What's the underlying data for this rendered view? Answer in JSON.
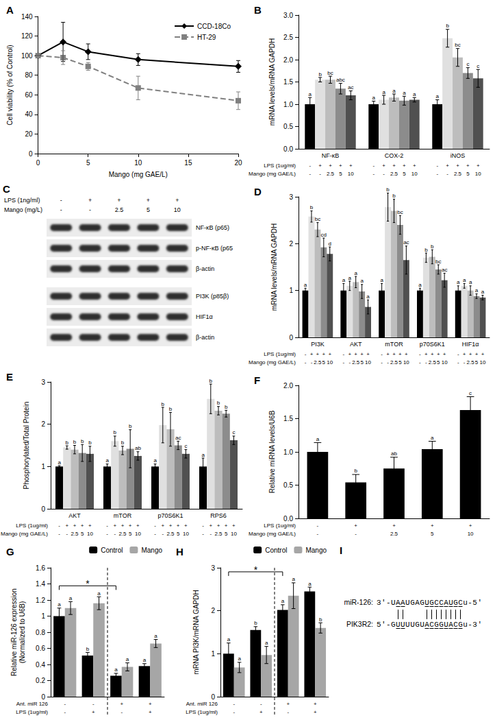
{
  "chart_data": [
    {
      "type": "line",
      "title": "A",
      "x_label": "Mango (mg GAE/L)",
      "y_label": "Cell viability (% of Control)",
      "x": [
        0,
        2.5,
        5,
        10,
        20
      ],
      "xlim": [
        0,
        20
      ],
      "xticks": [
        0,
        5,
        10,
        15,
        20
      ],
      "ylim": [
        0,
        140
      ],
      "yticks": [
        0,
        20,
        40,
        60,
        80,
        100,
        120,
        140
      ],
      "grid": false,
      "legend": "top-right",
      "series": [
        {
          "name": "CCD-18Co",
          "color": "#000000",
          "marker": "diamond",
          "line_style": "solid",
          "values": [
            100,
            114,
            104,
            96,
            89
          ],
          "errors": [
            0,
            20,
            8,
            6,
            6
          ]
        },
        {
          "name": "HT-29",
          "color": "#808080",
          "marker": "square",
          "line_style": "dashed",
          "values": [
            100,
            98,
            89,
            67,
            54
          ],
          "errors": [
            0,
            7,
            4,
            12,
            9
          ]
        }
      ]
    },
    {
      "type": "bar",
      "title": "B",
      "y_label": "mRNA levels/mRNA GAPDH",
      "categories": [
        "NF-κB",
        "COX-2",
        "iNOS"
      ],
      "ylim": [
        0,
        3
      ],
      "yticks": [
        {
          "value": 0,
          "label": "0.0"
        },
        0.5,
        {
          "value": 1,
          "label": "1.0"
        },
        1.5,
        {
          "value": 2,
          "label": "2.0"
        },
        2.5,
        {
          "value": 3,
          "label": "3.0"
        }
      ],
      "grid": false,
      "treatment_labels": [
        "LPS (1ug/ml)",
        "Mango (mg GAE/L)"
      ],
      "series": [
        {
          "color": "#000000",
          "values": [
            1,
            1,
            1
          ],
          "errors": [
            0.15,
            0.07,
            0.1
          ],
          "letters": [
            "a",
            "a",
            "a"
          ],
          "treatment": [
            "-",
            "-"
          ]
        },
        {
          "color": "#e0e0e0",
          "values": [
            1.55,
            1.1,
            2.48
          ],
          "errors": [
            0.05,
            0.1,
            0.2
          ],
          "letters": [
            "b",
            "a",
            "b"
          ],
          "treatment": [
            "+",
            "-"
          ]
        },
        {
          "color": "#bdbdbd",
          "values": [
            1.55,
            1.15,
            2.05
          ],
          "errors": [
            0.08,
            0.08,
            0.2
          ],
          "letters": [
            "bc",
            "a",
            "bc"
          ],
          "treatment": [
            "+",
            "2.5"
          ]
        },
        {
          "color": "#8c8c8c",
          "values": [
            1.35,
            1.08,
            1.7
          ],
          "errors": [
            0.12,
            0.1,
            0.12
          ],
          "letters": [
            "abc",
            "a",
            "c"
          ],
          "treatment": [
            "+",
            "5"
          ]
        },
        {
          "color": "#505050",
          "values": [
            1.2,
            1.1,
            1.58
          ],
          "errors": [
            0.1,
            0.05,
            0.2
          ],
          "letters": [
            "ac",
            "a",
            "c"
          ],
          "treatment": [
            "+",
            "10"
          ]
        }
      ]
    },
    {
      "type": "bar",
      "title": "D",
      "y_label": "mRNA levels/mRNA GAPDH",
      "categories": [
        "PI3K",
        "AKT",
        "mTOR",
        "p70S6K1",
        "HIF1α"
      ],
      "ylim": [
        0,
        3
      ],
      "yticks": [
        0,
        1,
        2,
        3
      ],
      "grid": false,
      "treatment_labels": [
        "LPS (1ug/ml)",
        "Mango (mg GAE/L)"
      ],
      "series": [
        {
          "color": "#000000",
          "values": [
            1,
            1,
            1,
            1,
            1
          ],
          "errors": [
            0.05,
            0.15,
            0.15,
            0.05,
            0.1
          ],
          "letters": [
            "a",
            "a",
            "a",
            "a",
            "a"
          ],
          "treatment": [
            "-",
            "-"
          ]
        },
        {
          "color": "#e0e0e0",
          "values": [
            2.58,
            1.1,
            2.78,
            1.7,
            1.1
          ],
          "errors": [
            0.12,
            0.1,
            0.3,
            0.1,
            0.05
          ],
          "letters": [
            "b",
            "a",
            "b",
            "b",
            "a"
          ],
          "treatment": [
            "+",
            "-"
          ]
        },
        {
          "color": "#bdbdbd",
          "values": [
            2.3,
            1.18,
            2.7,
            1.72,
            1
          ],
          "errors": [
            0.15,
            0.12,
            0.25,
            0.15,
            0.1
          ],
          "letters": [
            "bc",
            "a",
            "b",
            "b",
            "a"
          ],
          "treatment": [
            "+",
            "2.5"
          ]
        },
        {
          "color": "#8c8c8c",
          "values": [
            1.92,
            0.98,
            2.4,
            1.45,
            0.88
          ],
          "errors": [
            0.2,
            0.15,
            0.2,
            0.1,
            0.05
          ],
          "letters": [
            "cd",
            "a",
            "bc",
            "bc",
            "a"
          ],
          "treatment": [
            "+",
            "5"
          ]
        },
        {
          "color": "#505050",
          "values": [
            1.78,
            0.65,
            1.65,
            1.22,
            0.85
          ],
          "errors": [
            0.15,
            0.15,
            0.3,
            0.15,
            0.05
          ],
          "letters": [
            "d",
            "a",
            "ac",
            "ac",
            "a"
          ],
          "treatment": [
            "+",
            "10"
          ]
        }
      ]
    },
    {
      "type": "bar",
      "title": "E",
      "y_label": "Phosphorylated/Total Protein",
      "categories": [
        "AKT",
        "mTOR",
        "p70S6K1",
        "RPS6"
      ],
      "ylim": [
        0,
        3
      ],
      "yticks": [
        0,
        1,
        2,
        3
      ],
      "grid": false,
      "treatment_labels": [
        "LPS (1ug/ml)",
        "Mango (mg GAE/L)"
      ],
      "series": [
        {
          "color": "#000000",
          "values": [
            1,
            1,
            1,
            1
          ],
          "errors": [
            0.02,
            0.06,
            0.06,
            0.2
          ],
          "letters": [
            "a",
            "a",
            "a",
            "a"
          ],
          "treatment": [
            "-",
            "-"
          ]
        },
        {
          "color": "#e0e0e0",
          "values": [
            1.45,
            1.6,
            1.98,
            2.6
          ],
          "errors": [
            0.04,
            0.12,
            0.42,
            0.35
          ],
          "letters": [
            "b",
            "b",
            "b",
            "b"
          ],
          "treatment": [
            "+",
            "-"
          ]
        },
        {
          "color": "#bdbdbd",
          "values": [
            1.4,
            1.38,
            1.88,
            2.32
          ],
          "errors": [
            0.1,
            0.1,
            0.4,
            0.1
          ],
          "letters": [
            "b",
            "b",
            "b",
            "b"
          ],
          "treatment": [
            "+",
            "2.5"
          ]
        },
        {
          "color": "#8c8c8c",
          "values": [
            1.32,
            1.42,
            1.5,
            2.25
          ],
          "errors": [
            0.2,
            0.45,
            0.1,
            0.08
          ],
          "letters": [
            "b",
            "b",
            "ac",
            "b"
          ],
          "treatment": [
            "+",
            "5"
          ]
        },
        {
          "color": "#505050",
          "values": [
            1.3,
            1.25,
            1.3,
            1.62
          ],
          "errors": [
            0.18,
            0.1,
            0.1,
            0.1
          ],
          "letters": [
            "b",
            "ab",
            "c",
            "c"
          ],
          "treatment": [
            "+",
            "10"
          ]
        }
      ]
    },
    {
      "type": "bar",
      "title": "F",
      "y_label": "Relative miRNA levels/U6B",
      "categories": [
        null,
        null,
        null,
        null,
        null
      ],
      "ylim": [
        0,
        2
      ],
      "yticks": [
        {
          "value": 0,
          "label": "0.0"
        },
        0.5,
        {
          "value": 1,
          "label": "1.0"
        },
        1.5,
        {
          "value": 2,
          "label": "2.0"
        }
      ],
      "grid": false,
      "treatments": [
        {
          "label": "LPS (1ug/ml)",
          "values": [
            "-",
            "+",
            "+",
            "+",
            "+"
          ]
        },
        {
          "label": "Mango (mg GAE/L)",
          "values": [
            "-",
            "-",
            "2.5",
            "5",
            "10"
          ]
        }
      ],
      "series": [
        {
          "color": "#000000",
          "values": [
            1,
            0.54,
            0.75,
            1.04,
            1.63
          ],
          "errors": [
            0.14,
            0.12,
            0.17,
            0.12,
            0.2
          ],
          "letters": [
            "a",
            "b",
            "ab",
            "a",
            "c"
          ]
        }
      ]
    },
    {
      "type": "bar",
      "title": "G",
      "y_label": "Relative miR-126 expression\n(Normalized to U6B)",
      "categories": [
        null,
        null,
        null,
        null
      ],
      "ylim": [
        0,
        1.6
      ],
      "yticks": [
        0,
        0.2,
        0.4,
        0.6,
        0.8,
        1,
        1.2,
        1.4,
        1.6
      ],
      "grid": false,
      "legend": "top-right",
      "treatments": [
        {
          "label": "Ant. miR 126",
          "values": [
            "-",
            "-",
            "+",
            "+"
          ]
        },
        {
          "label": "LPS (1ug/ml)",
          "values": [
            "-",
            "+",
            "-",
            "+"
          ]
        }
      ],
      "divider": 1.5,
      "bracket": {
        "text": "*",
        "from": 0,
        "to": 2
      },
      "series": [
        {
          "name": "Control",
          "color": "#000000",
          "values": [
            1,
            0.51,
            0.26,
            0.38
          ],
          "errors": [
            0.1,
            0.04,
            0.03,
            0.03
          ],
          "letters": [
            "a",
            "b",
            "a",
            "a"
          ]
        },
        {
          "name": "Mango",
          "color": "#a6a6a6",
          "values": [
            1.1,
            1.16,
            0.37,
            0.66
          ],
          "errors": [
            0.08,
            0.08,
            0.05,
            0.05
          ],
          "letters": [
            "a",
            "a",
            "a",
            "a"
          ]
        }
      ]
    },
    {
      "type": "bar",
      "title": "H",
      "y_label": "mRNA PI3K/mRNA GAPDH",
      "categories": [
        null,
        null,
        null,
        null
      ],
      "ylim": [
        0,
        3
      ],
      "yticks": [
        0,
        1,
        2,
        3
      ],
      "grid": false,
      "legend": "top-right",
      "treatments": [
        {
          "label": "Ant. miR 126",
          "values": [
            "-",
            "-",
            "+",
            "+"
          ]
        },
        {
          "label": "LPS (1ug/ml)",
          "values": [
            "-",
            "+",
            "-",
            "+"
          ]
        }
      ],
      "divider": 1.5,
      "bracket": {
        "text": "*",
        "from": 0,
        "to": 2
      },
      "series": [
        {
          "name": "Control",
          "color": "#000000",
          "values": [
            1,
            1.55,
            2.02,
            2.45
          ],
          "errors": [
            0.25,
            0.08,
            0.12,
            0.1
          ],
          "letters": [
            "a",
            "b",
            "a",
            "a"
          ]
        },
        {
          "name": "Mango",
          "color": "#a6a6a6",
          "values": [
            0.68,
            0.97,
            2.35,
            1.6
          ],
          "errors": [
            0.12,
            0.2,
            0.3,
            0.12
          ],
          "letters": [
            "a",
            "a",
            "a",
            "b"
          ]
        }
      ]
    }
  ],
  "blot": {
    "title": "C",
    "treatments": [
      {
        "label": "LPS (1ng/ml)",
        "values": [
          "-",
          "+",
          "+",
          "+",
          "+"
        ]
      },
      {
        "label": "Mango (mg/L)",
        "values": [
          "-",
          "-",
          "2.5",
          "5",
          "10"
        ]
      }
    ],
    "groups": [
      [
        "NF-κB (p65)",
        "p-NF-κB (p65",
        "β-actin"
      ],
      [
        "PI3K (p85β)",
        "HIF1α",
        "β-actin"
      ]
    ]
  },
  "alignment": {
    "title": "I",
    "rows": [
      {
        "name": "miR-126:",
        "sequence": "3'-UAAUGAGUGCCAUGCu-5'"
      },
      {
        "name": "PIK3R2:",
        "sequence": "5'-GUUUUGUACGGUACGu-3'"
      }
    ],
    "paired": [
      4,
      5,
      10,
      11,
      12,
      13,
      14,
      15,
      16,
      17
    ]
  }
}
